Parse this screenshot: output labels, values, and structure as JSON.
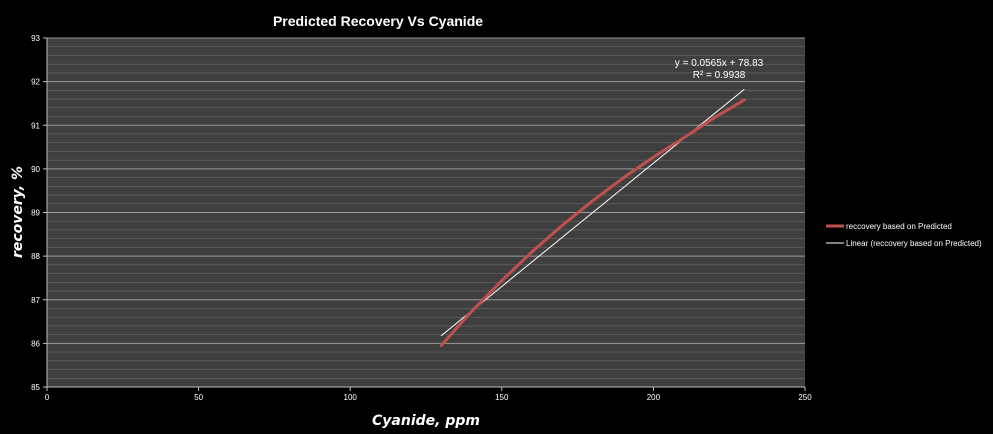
{
  "chart_data": {
    "type": "line",
    "title": "Predicted Recovery Vs Cyanide",
    "xlabel": "Cyanide, ppm",
    "ylabel": "recovery, %",
    "xlim": [
      0,
      250
    ],
    "ylim": [
      85,
      93
    ],
    "x_ticks": [
      "0",
      "50",
      "100",
      "150",
      "200",
      "250"
    ],
    "y_ticks": [
      "85",
      "86",
      "87",
      "88",
      "89",
      "90",
      "91",
      "92",
      "93"
    ],
    "grid": true,
    "legend_position": "right",
    "series": [
      {
        "name": "reccovery based on Predicted",
        "color": "#c0504d",
        "x": [
          130,
          140,
          150,
          160,
          170,
          180,
          190,
          200,
          210,
          220,
          230
        ],
        "y": [
          85.95,
          86.73,
          87.44,
          88.1,
          88.71,
          89.27,
          89.79,
          90.27,
          90.71,
          91.17,
          91.58
        ]
      }
    ],
    "trendline": {
      "name": "Linear (reccovery based on Predicted)",
      "color": "#ffffff",
      "slope": 0.0565,
      "intercept": 78.83,
      "x_range": [
        130,
        230
      ],
      "equation": "y = 0.0565x + 78.83",
      "r_squared": "R² = 0.9938"
    }
  }
}
